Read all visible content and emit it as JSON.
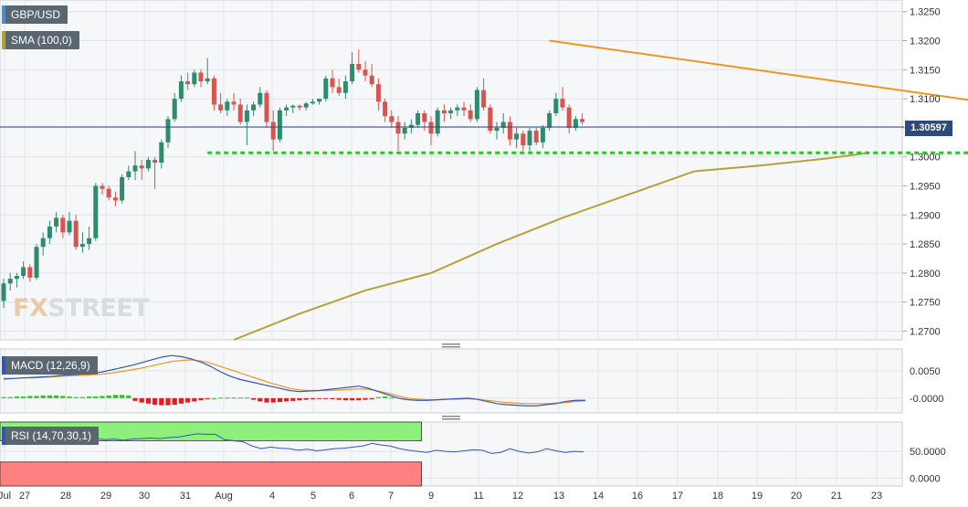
{
  "main_legend": {
    "symbol": "GBP/USD",
    "sma": "SMA (100,0)",
    "sma_color": "#b8a038"
  },
  "macd_legend": {
    "label": "MACD (12,26,9)",
    "color": "#3355bb"
  },
  "rsi_legend": {
    "label": "RSI (14,70,30,1)",
    "color": "#3355bb"
  },
  "watermark": {
    "fx": "FX",
    "street": "STREET"
  },
  "last_price": "1.30597",
  "chart_data": [
    {
      "type": "candlestick",
      "panel": "price",
      "ylim": [
        1.2685,
        1.327
      ],
      "y_ticks": [
        "1.3250",
        "1.3200",
        "1.3150",
        "1.3100",
        "1.3050",
        "1.3000",
        "1.2950",
        "1.2900",
        "1.2850",
        "1.2800",
        "1.2750",
        "1.2700"
      ],
      "x_ticks": [
        "Jul",
        "27",
        "28",
        "29",
        "30",
        "31",
        "Aug",
        "4",
        "5",
        "6",
        "7",
        "9",
        "11",
        "12",
        "13",
        "14",
        "16",
        "17",
        "18",
        "19",
        "20",
        "21",
        "23"
      ],
      "colors": {
        "up": "#2e8b6e",
        "down": "#d9534f",
        "sma": "#b8a038",
        "trendline": "#f0961e",
        "support": "#22cc22"
      },
      "candles": [
        [
          1.2752,
          1.279,
          1.274,
          1.2782
        ],
        [
          1.2782,
          1.28,
          1.277,
          1.279
        ],
        [
          1.279,
          1.28,
          1.2775,
          1.2795
        ],
        [
          1.2795,
          1.282,
          1.279,
          1.281
        ],
        [
          1.281,
          1.2815,
          1.2785,
          1.2792
        ],
        [
          1.2792,
          1.285,
          1.2788,
          1.2845
        ],
        [
          1.2845,
          1.287,
          1.283,
          1.286
        ],
        [
          1.286,
          1.289,
          1.285,
          1.288
        ],
        [
          1.288,
          1.2905,
          1.287,
          1.2895
        ],
        [
          1.2895,
          1.29,
          1.286,
          1.287
        ],
        [
          1.287,
          1.2905,
          1.2865,
          1.289
        ],
        [
          1.289,
          1.29,
          1.284,
          1.2845
        ],
        [
          1.2845,
          1.287,
          1.2835,
          1.285
        ],
        [
          1.285,
          1.288,
          1.284,
          1.286
        ],
        [
          1.286,
          1.2955,
          1.2855,
          1.295
        ],
        [
          1.295,
          1.2955,
          1.2935,
          1.2945
        ],
        [
          1.2945,
          1.295,
          1.2925,
          1.293
        ],
        [
          1.293,
          1.294,
          1.2915,
          1.2925
        ],
        [
          1.2925,
          1.297,
          1.292,
          1.2965
        ],
        [
          1.2965,
          1.2985,
          1.296,
          1.2975
        ],
        [
          1.2975,
          1.301,
          1.296,
          1.2985
        ],
        [
          1.2985,
          1.2995,
          1.296,
          1.298
        ],
        [
          1.298,
          1.3,
          1.2975,
          1.2995
        ],
        [
          1.2995,
          1.3,
          1.2945,
          1.299
        ],
        [
          1.299,
          1.303,
          1.298,
          1.3025
        ],
        [
          1.3025,
          1.307,
          1.3015,
          1.3065
        ],
        [
          1.3065,
          1.311,
          1.306,
          1.31
        ],
        [
          1.31,
          1.314,
          1.3095,
          1.313
        ],
        [
          1.313,
          1.3145,
          1.3115,
          1.3125
        ],
        [
          1.3125,
          1.315,
          1.312,
          1.3145
        ],
        [
          1.3145,
          1.315,
          1.312,
          1.313
        ],
        [
          1.313,
          1.317,
          1.3125,
          1.3135
        ],
        [
          1.3135,
          1.314,
          1.308,
          1.309
        ],
        [
          1.309,
          1.311,
          1.3075,
          1.308
        ],
        [
          1.308,
          1.31,
          1.307,
          1.3095
        ],
        [
          1.3095,
          1.311,
          1.308,
          1.309
        ],
        [
          1.309,
          1.31,
          1.3055,
          1.306
        ],
        [
          1.306,
          1.309,
          1.302,
          1.308
        ],
        [
          1.308,
          1.3095,
          1.307,
          1.309
        ],
        [
          1.309,
          1.312,
          1.3085,
          1.311
        ],
        [
          1.311,
          1.3115,
          1.305,
          1.306
        ],
        [
          1.306,
          1.308,
          1.301,
          1.303
        ],
        [
          1.303,
          1.3085,
          1.3025,
          1.308
        ],
        [
          1.308,
          1.309,
          1.307,
          1.3085
        ],
        [
          1.3085,
          1.309,
          1.3075,
          1.3088
        ],
        [
          1.3088,
          1.309,
          1.308,
          1.3085
        ],
        [
          1.3085,
          1.3095,
          1.308,
          1.3092
        ],
        [
          1.3092,
          1.31,
          1.309,
          1.3095
        ],
        [
          1.3095,
          1.31,
          1.309,
          1.31
        ],
        [
          1.31,
          1.314,
          1.3095,
          1.3135
        ],
        [
          1.3135,
          1.315,
          1.311,
          1.312
        ],
        [
          1.312,
          1.3135,
          1.3105,
          1.311
        ],
        [
          1.311,
          1.314,
          1.31,
          1.313
        ],
        [
          1.313,
          1.318,
          1.3125,
          1.316
        ],
        [
          1.316,
          1.3185,
          1.3145,
          1.315
        ],
        [
          1.315,
          1.3165,
          1.313,
          1.314
        ],
        [
          1.314,
          1.316,
          1.312,
          1.3125
        ],
        [
          1.3125,
          1.3135,
          1.308,
          1.3095
        ],
        [
          1.3095,
          1.31,
          1.306,
          1.307
        ],
        [
          1.307,
          1.308,
          1.305,
          1.306
        ],
        [
          1.306,
          1.307,
          1.301,
          1.304
        ],
        [
          1.304,
          1.306,
          1.303,
          1.305
        ],
        [
          1.305,
          1.3065,
          1.304,
          1.3055
        ],
        [
          1.3055,
          1.308,
          1.305,
          1.3075
        ],
        [
          1.3075,
          1.308,
          1.3045,
          1.306
        ],
        [
          1.306,
          1.307,
          1.302,
          1.304
        ],
        [
          1.304,
          1.3085,
          1.3035,
          1.308
        ],
        [
          1.308,
          1.309,
          1.306,
          1.3075
        ],
        [
          1.3075,
          1.3085,
          1.3065,
          1.308
        ],
        [
          1.308,
          1.309,
          1.307,
          1.3085
        ],
        [
          1.3085,
          1.3095,
          1.307,
          1.308
        ],
        [
          1.308,
          1.309,
          1.306,
          1.3065
        ],
        [
          1.3065,
          1.312,
          1.306,
          1.3115
        ],
        [
          1.3115,
          1.3135,
          1.308,
          1.3085
        ],
        [
          1.3085,
          1.309,
          1.304,
          1.3045
        ],
        [
          1.3045,
          1.306,
          1.303,
          1.305
        ],
        [
          1.305,
          1.3075,
          1.304,
          1.306
        ],
        [
          1.306,
          1.307,
          1.302,
          1.303
        ],
        [
          1.303,
          1.305,
          1.3015,
          1.304
        ],
        [
          1.304,
          1.3045,
          1.301,
          1.302
        ],
        [
          1.302,
          1.305,
          1.301,
          1.3045
        ],
        [
          1.3045,
          1.305,
          1.302,
          1.3025
        ],
        [
          1.3025,
          1.3055,
          1.3015,
          1.305
        ],
        [
          1.305,
          1.308,
          1.3045,
          1.3075
        ],
        [
          1.3075,
          1.311,
          1.307,
          1.31
        ],
        [
          1.31,
          1.312,
          1.308,
          1.3085
        ],
        [
          1.3085,
          1.309,
          1.304,
          1.305
        ],
        [
          1.305,
          1.307,
          1.3045,
          1.3065
        ],
        [
          1.3065,
          1.3075,
          1.3055,
          1.306
        ]
      ],
      "sma_points": [
        [
          35,
          1.2685
        ],
        [
          45,
          1.273
        ],
        [
          55,
          1.277
        ],
        [
          65,
          1.28
        ],
        [
          75,
          1.285
        ],
        [
          85,
          1.2895
        ],
        [
          95,
          1.2935
        ],
        [
          105,
          1.2975
        ],
        [
          115,
          1.2985
        ],
        [
          125,
          1.2997
        ],
        [
          131,
          1.3006
        ]
      ],
      "trendline": [
        [
          83,
          1.32
        ],
        [
          230,
          1.2965
        ]
      ],
      "support_level": {
        "y": 1.3007,
        "x_from": 31,
        "x_to": 152
      }
    },
    {
      "type": "bar+line",
      "panel": "macd",
      "ylim": [
        -0.0027,
        0.009
      ],
      "y_ticks": [
        "0.0050",
        "-0.0000"
      ],
      "colors": {
        "macd": "#3355bb",
        "signal": "#f0961e",
        "hist_pos": "#22cc22",
        "hist_neg": "#e02020"
      },
      "macd": [
        0.0035,
        0.0036,
        0.0037,
        0.0038,
        0.0039,
        0.004,
        0.0042,
        0.0043,
        0.0044,
        0.0046,
        0.0048,
        0.0052,
        0.0056,
        0.006,
        0.0065,
        0.007,
        0.0075,
        0.0078,
        0.0076,
        0.0072,
        0.0066,
        0.0058,
        0.0048,
        0.004,
        0.0034,
        0.003,
        0.0026,
        0.0022,
        0.0018,
        0.0014,
        0.0012,
        0.0013,
        0.0014,
        0.0016,
        0.0018,
        0.002,
        0.0022,
        0.0018,
        0.0012,
        0.0006,
        0.0,
        -0.0003,
        -0.0004,
        -0.0004,
        -0.0003,
        -0.0002,
        -0.0001,
        0.0,
        -0.0002,
        -0.0006,
        -0.001,
        -0.0012,
        -0.0013,
        -0.0014,
        -0.0014,
        -0.0012,
        -0.001,
        -0.0006,
        -0.0004,
        -0.0004
      ],
      "signal": [
        0.0036,
        0.0036,
        0.0037,
        0.0037,
        0.0038,
        0.0039,
        0.004,
        0.0041,
        0.0042,
        0.0043,
        0.0044,
        0.0046,
        0.0049,
        0.0052,
        0.0055,
        0.0059,
        0.0063,
        0.0067,
        0.0069,
        0.007,
        0.0068,
        0.0064,
        0.0058,
        0.0052,
        0.0046,
        0.004,
        0.0034,
        0.0028,
        0.0023,
        0.0018,
        0.0015,
        0.0014,
        0.0014,
        0.0014,
        0.0015,
        0.0016,
        0.0017,
        0.0016,
        0.0013,
        0.0009,
        0.0004,
        0.0,
        -0.0002,
        -0.0003,
        -0.0003,
        -0.0002,
        -0.0002,
        -0.0001,
        -0.0002,
        -0.0004,
        -0.0006,
        -0.0008,
        -0.0009,
        -0.001,
        -0.001,
        -0.001,
        -0.0009,
        -0.0008,
        -0.0006,
        -0.0005
      ],
      "histogram": [
        0.0002,
        0.0002,
        0.0003,
        0.0003,
        0.0004,
        0.0004,
        0.0005,
        0.0005,
        0.0005,
        0.0004,
        0.0003,
        0.0002,
        0.0002,
        0.0003,
        0.0003,
        0.0004,
        0.0005,
        0.0006,
        0.0006,
        0.0005,
        -0.0005,
        -0.0008,
        -0.001,
        -0.0012,
        -0.0013,
        -0.0013,
        -0.0012,
        -0.001,
        -0.0008,
        -0.0006,
        -0.0004,
        -0.0002,
        0.0,
        0.0001,
        0.0001,
        0.0001,
        0.0001,
        0.0001,
        -0.0003,
        -0.0006,
        -0.0008,
        -0.0008,
        -0.0007,
        -0.0006,
        -0.0005,
        -0.0004,
        -0.0003,
        -0.0002,
        -0.0001,
        -0.0001,
        -0.0002,
        -0.0003,
        -0.0004,
        -0.0004,
        -0.0004,
        -0.0003,
        -0.0002,
        0.0002,
        0.0003,
        0.0001
      ]
    },
    {
      "type": "line",
      "panel": "rsi",
      "ylim": [
        -15,
        105
      ],
      "y_ticks": [
        "50.0000",
        "0.0000"
      ],
      "overbought": 70,
      "oversold": 30,
      "colors": {
        "line": "#3355bb",
        "overbought_zone": "#8cf07a",
        "oversold_zone": "#ff8080"
      },
      "values": [
        72,
        70,
        71,
        72,
        70,
        71,
        73,
        72,
        71,
        73,
        74,
        72,
        73,
        71,
        73,
        74,
        75,
        74,
        76,
        77,
        80,
        83,
        82,
        82,
        72,
        70,
        68,
        60,
        55,
        58,
        56,
        55,
        52,
        54,
        51,
        53,
        55,
        56,
        58,
        60,
        65,
        62,
        60,
        55,
        52,
        50,
        48,
        52,
        50,
        49,
        51,
        53,
        52,
        46,
        48,
        55,
        50,
        47,
        49,
        55,
        51,
        48,
        50,
        49
      ]
    }
  ]
}
